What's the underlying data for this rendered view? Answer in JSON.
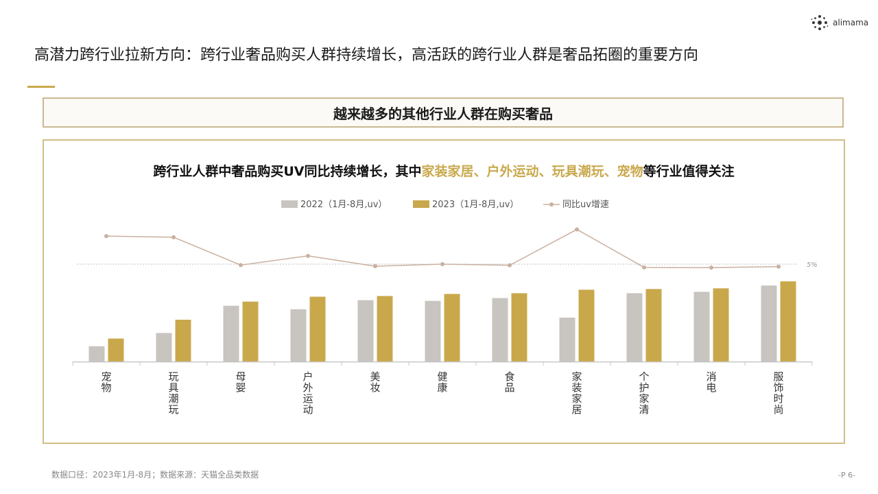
{
  "logo": {
    "text": "alimama"
  },
  "page_title": "高潜力跨行业拉新方向：跨行业奢品购买人群持续增长，高活跃的跨行业人群是奢品拓圈的重要方向",
  "banner": "越来越多的其他行业人群在购买奢品",
  "chart_title": {
    "before": "跨行业人群中奢品购买UV同比持续增长，其中",
    "industry_1": "家装家居",
    "sep_1": "、",
    "industry_2": "户外运动",
    "sep_2": "、",
    "industry_3": "玩具潮玩",
    "sep_3": "、",
    "industry_4": "宠物",
    "after": "等行业值得关注"
  },
  "colors": {
    "series_2022": "#c8c4bf",
    "series_2023": "#c9a84c",
    "growth_line": "#c9b0a0",
    "accent": "#c9a84c"
  },
  "chart_data": {
    "type": "bar",
    "categories": [
      "宠物",
      "玩具潮玩",
      "母婴",
      "户外运动",
      "美妆",
      "健康",
      "食品",
      "家装家居",
      "个护家清",
      "消电",
      "服饰时尚"
    ],
    "series": [
      {
        "name": "2022（1月-8月,uv）",
        "type": "bar",
        "values": [
          22,
          41,
          80,
          75,
          88,
          87,
          91,
          63,
          98,
          100,
          109
        ]
      },
      {
        "name": "2023（1月-8月,uv）",
        "type": "bar",
        "values": [
          33,
          60,
          86,
          93,
          94,
          97,
          98,
          103,
          104,
          105,
          115
        ]
      },
      {
        "name": "同比uv增速",
        "type": "line",
        "axis": "secondary",
        "values": [
          17.2,
          16.7,
          4.6,
          8.6,
          4.1,
          5.0,
          4.5,
          20.1,
          3.6,
          3.5,
          3.9
        ]
      }
    ],
    "reference_line": {
      "label": "5%",
      "value": 5
    },
    "y_axis_visible": false,
    "grid": false,
    "legend": "top-center"
  },
  "footnote": "数据口径：2023年1月-8月；数据来源：天猫全品类数据",
  "page_number": "-P 6-"
}
